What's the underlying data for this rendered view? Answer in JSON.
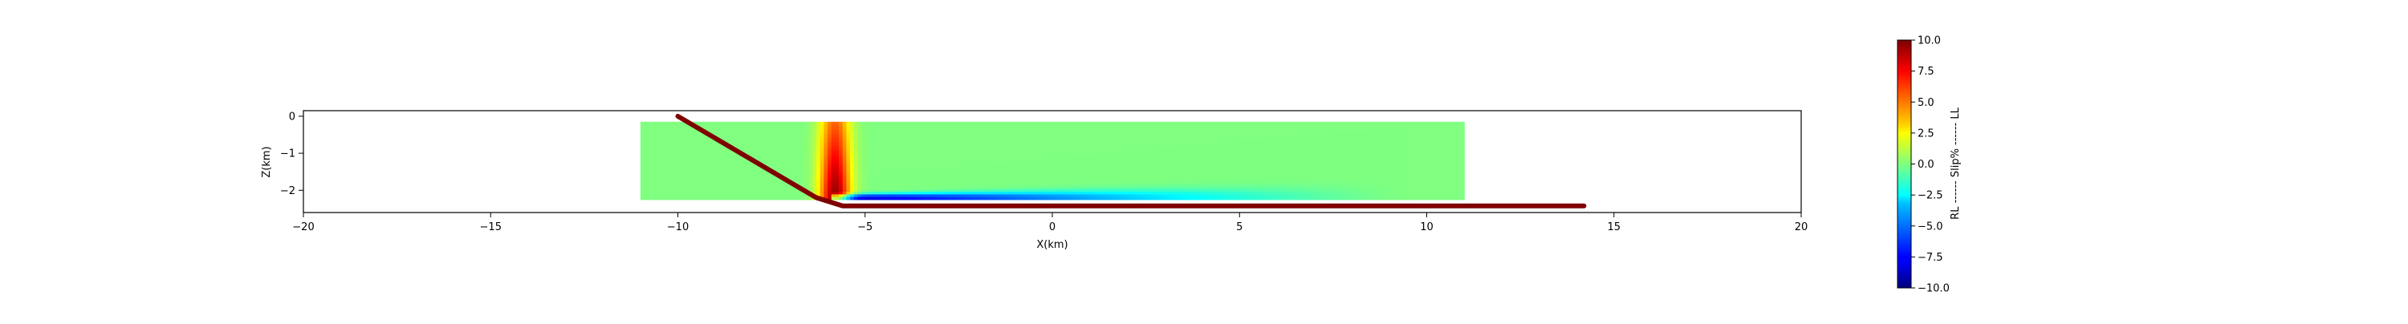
{
  "chart_data": {
    "type": "heatmap",
    "title": "",
    "xlabel": "X(km)",
    "ylabel": "Z(km)",
    "xlim": [
      -20,
      20
    ],
    "ylim": [
      -2.6,
      0.15
    ],
    "x_ticks": [
      -20,
      -15,
      -10,
      -5,
      0,
      5,
      10,
      15,
      20
    ],
    "x_tick_labels": [
      "−20",
      "−15",
      "−10",
      "−5",
      "0",
      "5",
      "10",
      "15",
      "20"
    ],
    "y_ticks": [
      0,
      -1,
      -2
    ],
    "y_tick_labels": [
      "0",
      "−1",
      "−2"
    ],
    "grid": false,
    "fault_trace": {
      "color": "#7f0000",
      "points": [
        [
          -10.0,
          0.0
        ],
        [
          -6.3,
          -2.2
        ],
        [
          -5.6,
          -2.42
        ],
        [
          14.2,
          -2.42
        ]
      ]
    },
    "slip_field": {
      "x_range": [
        -11.0,
        11.0
      ],
      "z_range": [
        -2.25,
        -0.15
      ],
      "background_value": 0.0,
      "high_slip_zone": {
        "x_center": -5.8,
        "half_width": 0.6,
        "peak_value": 10.0
      },
      "low_slip_zone": {
        "x_start": -5.9,
        "x_end": 9.5,
        "z_center": -2.2,
        "peak_value": -9.0
      }
    },
    "colorbar": {
      "label": "RL ------ Slip% ------ LL",
      "colormap": "jet",
      "range": [
        -10.0,
        10.0
      ],
      "ticks": [
        -10.0,
        -7.5,
        -5.0,
        -2.5,
        0.0,
        2.5,
        5.0,
        7.5,
        10.0
      ],
      "tick_labels": [
        "−10.0",
        "−7.5",
        "−5.0",
        "−2.5",
        "0.0",
        "2.5",
        "5.0",
        "7.5",
        "10.0"
      ]
    }
  }
}
